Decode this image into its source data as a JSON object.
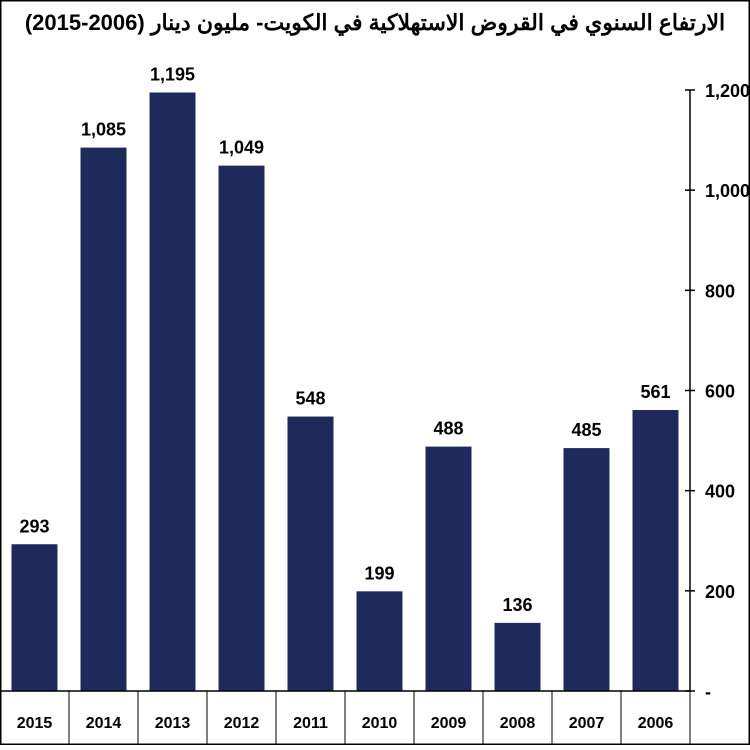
{
  "chart_data": {
    "type": "bar",
    "title": "الارتفاع السنوي في القروض الاستهلاكية في الكويت- مليون دينار (2006-2015)",
    "categories": [
      "2015",
      "2014",
      "2013",
      "2012",
      "2011",
      "2010",
      "2009",
      "2008",
      "2007",
      "2006"
    ],
    "values": [
      293,
      1085,
      1195,
      1049,
      548,
      199,
      488,
      136,
      485,
      561
    ],
    "value_labels": [
      "293",
      "1,085",
      "1,195",
      "1,049",
      "548",
      "199",
      "488",
      "136",
      "485",
      "561"
    ],
    "y_ticks": [
      0,
      200,
      400,
      600,
      800,
      1000,
      1200
    ],
    "y_tick_labels": [
      "-",
      "200",
      "400",
      "600",
      "800",
      "1,000",
      "1,200"
    ],
    "ylim": [
      0,
      1200
    ],
    "y_axis_position": "right",
    "grid": false,
    "bar_color": "#1f2a5c",
    "xlabel": "",
    "ylabel": ""
  }
}
